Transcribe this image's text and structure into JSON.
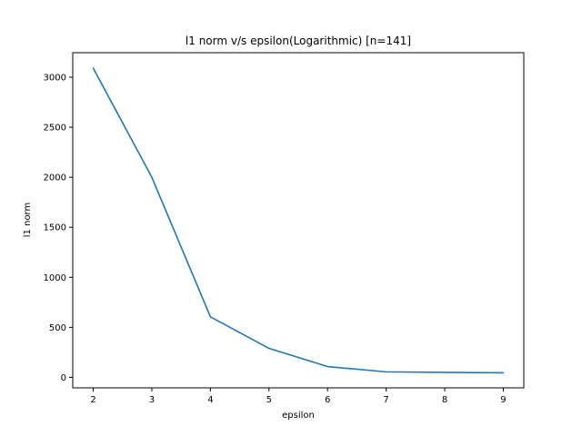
{
  "chart_data": {
    "type": "line",
    "title": "l1 norm v/s epsilon(Logarithmic) [n=141]",
    "xlabel": "epsilon",
    "ylabel": "l1 norm",
    "x": [
      2,
      3,
      4,
      5,
      6,
      7,
      8,
      9
    ],
    "series": [
      {
        "values": [
          3090,
          2000,
          605,
          290,
          108,
          55,
          50,
          45
        ],
        "color": "#1f77b4"
      }
    ],
    "xlim": [
      1.65,
      9.35
    ],
    "ylim": [
      -105,
      3245
    ],
    "xticks": [
      2,
      3,
      4,
      5,
      6,
      7,
      8,
      9
    ],
    "yticks": [
      0,
      500,
      1000,
      1500,
      2000,
      2500,
      3000
    ],
    "grid": false
  }
}
